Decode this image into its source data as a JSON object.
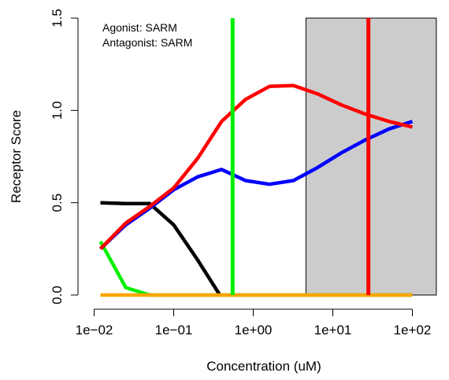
{
  "chart_data": {
    "type": "line",
    "xlabel": "Concentration (uM)",
    "ylabel": "Receptor Score",
    "x_scale": "log10",
    "xlim": [
      0.0085,
      200
    ],
    "ylim": [
      0,
      1.5
    ],
    "x_ticks": [
      {
        "value": 0.01,
        "label": "1e−02"
      },
      {
        "value": 0.1,
        "label": "1e−01"
      },
      {
        "value": 1,
        "label": "1e+00"
      },
      {
        "value": 10,
        "label": "1e+01"
      },
      {
        "value": 100,
        "label": "1e+02"
      }
    ],
    "y_ticks": [
      {
        "value": 0.0,
        "label": "0.0"
      },
      {
        "value": 0.5,
        "label": "0.5"
      },
      {
        "value": 1.0,
        "label": "1.0"
      },
      {
        "value": 1.5,
        "label": "1.5"
      }
    ],
    "annotations": [
      "Agonist: SARM",
      "Antagonist: SARM"
    ],
    "shaded_region": {
      "x_from": 4.6,
      "x_to": 200,
      "y_from": 0,
      "y_to": 1.5,
      "color": "#cccccc"
    },
    "vertical_lines": [
      {
        "x": 0.55,
        "color": "#00ee00"
      },
      {
        "x": 28,
        "color": "#ff0000"
      }
    ],
    "series": [
      {
        "color": "#00ee00",
        "x": [
          0.012,
          0.025,
          0.05,
          0.1,
          100
        ],
        "values": [
          0.29,
          0.04,
          0.0,
          0.0,
          0.0
        ]
      },
      {
        "color": "#000000",
        "x": [
          0.012,
          0.025,
          0.05,
          0.1,
          0.2,
          0.38
        ],
        "values": [
          0.5,
          0.495,
          0.495,
          0.38,
          0.19,
          0.0
        ]
      },
      {
        "color": "#ffa500",
        "x": [
          0.012,
          100
        ],
        "values": [
          0.0,
          0.0
        ]
      },
      {
        "color": "#0000ff",
        "x": [
          0.012,
          0.025,
          0.05,
          0.1,
          0.2,
          0.4,
          0.8,
          1.6,
          3.2,
          6.4,
          12.8,
          25.6,
          51.2,
          100
        ],
        "values": [
          0.25,
          0.38,
          0.47,
          0.57,
          0.64,
          0.68,
          0.62,
          0.6,
          0.62,
          0.69,
          0.77,
          0.84,
          0.9,
          0.94
        ]
      },
      {
        "color": "#ff0000",
        "x": [
          0.012,
          0.025,
          0.05,
          0.1,
          0.2,
          0.4,
          0.8,
          1.6,
          3.2,
          6.4,
          12.8,
          25.6,
          51.2,
          100
        ],
        "values": [
          0.25,
          0.39,
          0.48,
          0.58,
          0.74,
          0.94,
          1.06,
          1.13,
          1.135,
          1.09,
          1.03,
          0.98,
          0.94,
          0.91
        ]
      }
    ]
  }
}
